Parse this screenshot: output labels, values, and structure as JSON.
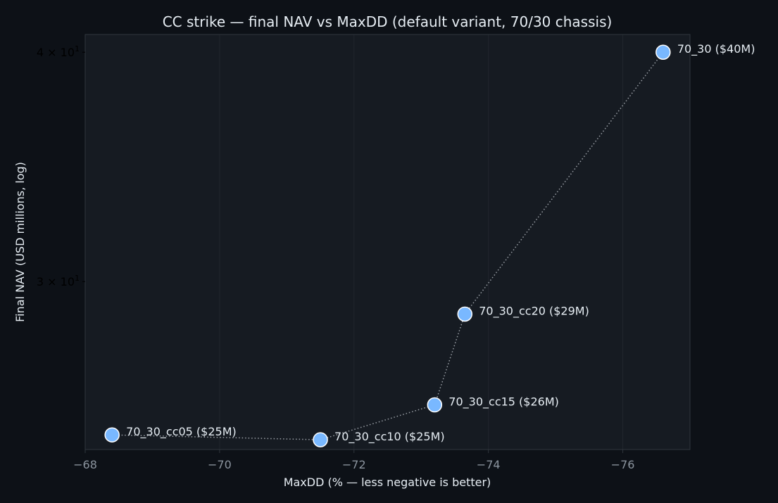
{
  "chart_data": {
    "type": "scatter",
    "title": "CC strike — final NAV vs MaxDD (default variant, 70/30 chassis)",
    "xlabel": "MaxDD (% — less negative is better)",
    "ylabel": "Final NAV (USD millions, log)",
    "xlim": [
      -68,
      -77
    ],
    "x_inverted": true,
    "ylim": [
      24.3,
      40.9
    ],
    "y_scale": "log",
    "x_ticks": [
      -68,
      -70,
      -72,
      -74,
      -76
    ],
    "x_tick_labels": [
      "−68",
      "−70",
      "−72",
      "−74",
      "−76"
    ],
    "y_ticks": [
      30,
      40
    ],
    "y_tick_labels": [
      {
        "mantissa": "3 × 10",
        "exponent": "1"
      },
      {
        "mantissa": "4 × 10",
        "exponent": "1"
      }
    ],
    "grid": true,
    "connector": "dotted line joining points in order",
    "points": [
      {
        "label": "70_30_cc05 ($25M)",
        "x": -68.4,
        "y": 24.75
      },
      {
        "label": "70_30_cc10 ($25M)",
        "x": -71.5,
        "y": 24.6
      },
      {
        "label": "70_30_cc15 ($26M)",
        "x": -73.2,
        "y": 25.7
      },
      {
        "label": "70_30_cc20 ($29M)",
        "x": -73.65,
        "y": 28.8
      },
      {
        "label": "70_30 ($40M)",
        "x": -76.6,
        "y": 40.0
      }
    ],
    "colors": {
      "page_bg": "#0d1117",
      "plot_bg": "#161b22",
      "marker": "#79b8ff",
      "marker_edge": "#ffffff",
      "connector": "#9a9fa6",
      "text": "#e6edf3",
      "tick_label": "#8b949e",
      "grid": "#21262d",
      "spine": "#30363d"
    }
  }
}
